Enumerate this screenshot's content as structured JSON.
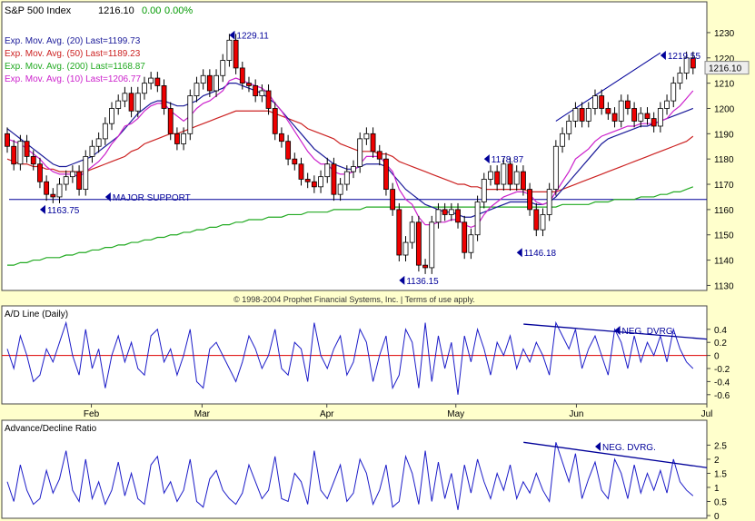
{
  "header": {
    "symbol": "S&P 500 Index",
    "last": "1216.10",
    "change": "0.00",
    "change_pct": "0.00%"
  },
  "copyright": "© 1998-2004 Prophet Financial Systems, Inc. | Terms of use apply.",
  "colors": {
    "background": "#ffffcc",
    "panel": "#ffffff",
    "up_candle": "#ffffff",
    "down_candle": "#ee0000",
    "ema20": "#1a1a99",
    "ema50": "#cc2222",
    "ema200": "#22aa22",
    "ema10": "#cc22cc",
    "indicator_line": "#1c1cc8",
    "zero_line": "#dd0000",
    "annotation": "#000099"
  },
  "chart_data": [
    {
      "type": "candlestick",
      "title": "S&P 500 Index",
      "ylim": [
        1128,
        1235
      ],
      "yticks": [
        1130,
        1140,
        1150,
        1160,
        1170,
        1180,
        1190,
        1200,
        1210,
        1220,
        1230
      ],
      "last_value_label": "1216.10",
      "legend": [
        {
          "label": "Exp. Mov. Avg. (20) Last=1199.73",
          "series": "ema20"
        },
        {
          "label": "Exp. Mov. Avg. (50) Last=1189.23",
          "series": "ema50"
        },
        {
          "label": "Exp. Mov. Avg. (200) Last=1168.87",
          "series": "ema200"
        },
        {
          "label": "Exp. Mov. Avg. (10) Last=1206.77",
          "series": "ema10"
        }
      ],
      "candles_close": [
        1185,
        1178,
        1187,
        1181,
        1178,
        1171,
        1166,
        1165,
        1170,
        1173,
        1175,
        1168,
        1181,
        1185,
        1188,
        1194,
        1200,
        1203,
        1206,
        1199,
        1206,
        1210,
        1212,
        1209,
        1200,
        1190,
        1186,
        1190,
        1205,
        1210,
        1213,
        1207,
        1213,
        1219,
        1227,
        1216,
        1210,
        1209,
        1205,
        1207,
        1200,
        1190,
        1187,
        1180,
        1178,
        1172,
        1171,
        1169,
        1173,
        1178,
        1166,
        1170,
        1175,
        1177,
        1188,
        1190,
        1183,
        1180,
        1168,
        1160,
        1142,
        1147,
        1155,
        1138,
        1137,
        1155,
        1160,
        1158,
        1160,
        1155,
        1143,
        1150,
        1163,
        1172,
        1175,
        1170,
        1178,
        1170,
        1175,
        1168,
        1160,
        1152,
        1158,
        1168,
        1185,
        1190,
        1195,
        1200,
        1195,
        1200,
        1205,
        1200,
        1198,
        1195,
        1203,
        1200,
        1195,
        1198,
        1196,
        1193,
        1200,
        1203,
        1210,
        1214,
        1220,
        1216
      ],
      "candles_open": [
        1190,
        1185,
        1178,
        1187,
        1181,
        1178,
        1171,
        1166,
        1165,
        1170,
        1173,
        1175,
        1168,
        1181,
        1185,
        1188,
        1194,
        1200,
        1203,
        1206,
        1199,
        1206,
        1210,
        1212,
        1209,
        1200,
        1190,
        1186,
        1190,
        1205,
        1210,
        1213,
        1207,
        1213,
        1219,
        1227,
        1216,
        1210,
        1209,
        1205,
        1207,
        1200,
        1190,
        1187,
        1180,
        1178,
        1172,
        1171,
        1169,
        1173,
        1178,
        1166,
        1170,
        1175,
        1177,
        1188,
        1190,
        1183,
        1180,
        1168,
        1160,
        1142,
        1147,
        1155,
        1138,
        1137,
        1155,
        1160,
        1158,
        1160,
        1155,
        1143,
        1150,
        1163,
        1172,
        1175,
        1170,
        1178,
        1170,
        1175,
        1168,
        1160,
        1152,
        1158,
        1168,
        1185,
        1190,
        1195,
        1200,
        1195,
        1200,
        1205,
        1200,
        1198,
        1195,
        1203,
        1200,
        1195,
        1198,
        1196,
        1193,
        1200,
        1203,
        1210,
        1214,
        1220
      ],
      "ema20": [
        1192,
        1190,
        1188,
        1186,
        1184,
        1182,
        1180,
        1178,
        1177,
        1177,
        1178,
        1179,
        1180,
        1181,
        1183,
        1185,
        1187,
        1189,
        1192,
        1195,
        1198,
        1200,
        1202,
        1203,
        1203,
        1202,
        1201,
        1201,
        1202,
        1203,
        1205,
        1206,
        1207,
        1208,
        1210,
        1210,
        1209,
        1208,
        1207,
        1206,
        1204,
        1202,
        1199,
        1196,
        1193,
        1190,
        1187,
        1184,
        1182,
        1180,
        1178,
        1177,
        1176,
        1176,
        1177,
        1178,
        1178,
        1178,
        1177,
        1174,
        1171,
        1168,
        1166,
        1164,
        1162,
        1161,
        1160,
        1159,
        1159,
        1158,
        1157,
        1157,
        1158,
        1159,
        1160,
        1161,
        1162,
        1163,
        1163,
        1163,
        1163,
        1162,
        1162,
        1163,
        1165,
        1168,
        1171,
        1174,
        1177,
        1180,
        1183,
        1186,
        1188,
        1189,
        1190,
        1191,
        1192,
        1193,
        1193,
        1194,
        1195,
        1196,
        1197,
        1198,
        1199,
        1200
      ],
      "ema50": [
        1180,
        1179,
        1178,
        1178,
        1177,
        1177,
        1176,
        1176,
        1175,
        1175,
        1175,
        1175,
        1175,
        1176,
        1177,
        1178,
        1179,
        1180,
        1181,
        1183,
        1184,
        1186,
        1187,
        1188,
        1189,
        1190,
        1190,
        1191,
        1192,
        1193,
        1194,
        1195,
        1196,
        1197,
        1198,
        1199,
        1199,
        1199,
        1199,
        1199,
        1199,
        1198,
        1197,
        1196,
        1195,
        1194,
        1192,
        1191,
        1190,
        1189,
        1188,
        1186,
        1185,
        1184,
        1183,
        1183,
        1183,
        1182,
        1182,
        1181,
        1179,
        1178,
        1177,
        1176,
        1175,
        1174,
        1173,
        1172,
        1171,
        1170,
        1170,
        1169,
        1169,
        1168,
        1168,
        1168,
        1168,
        1168,
        1168,
        1168,
        1167,
        1167,
        1167,
        1167,
        1167,
        1168,
        1169,
        1170,
        1171,
        1172,
        1173,
        1174,
        1175,
        1176,
        1177,
        1178,
        1179,
        1180,
        1181,
        1182,
        1183,
        1184,
        1185,
        1186,
        1187,
        1189
      ],
      "ema200": [
        1138,
        1138,
        1139,
        1139,
        1140,
        1140,
        1141,
        1141,
        1141,
        1142,
        1142,
        1143,
        1143,
        1144,
        1144,
        1145,
        1145,
        1146,
        1146,
        1147,
        1147,
        1148,
        1148,
        1149,
        1149,
        1150,
        1150,
        1151,
        1151,
        1152,
        1152,
        1153,
        1153,
        1154,
        1154,
        1155,
        1155,
        1156,
        1156,
        1156,
        1157,
        1157,
        1157,
        1158,
        1158,
        1158,
        1159,
        1159,
        1159,
        1159,
        1160,
        1160,
        1160,
        1160,
        1160,
        1161,
        1161,
        1161,
        1161,
        1161,
        1161,
        1161,
        1161,
        1161,
        1161,
        1161,
        1161,
        1161,
        1161,
        1161,
        1161,
        1161,
        1161,
        1161,
        1161,
        1161,
        1161,
        1161,
        1161,
        1161,
        1161,
        1161,
        1161,
        1161,
        1161,
        1162,
        1162,
        1162,
        1162,
        1162,
        1163,
        1163,
        1163,
        1164,
        1164,
        1164,
        1164,
        1165,
        1165,
        1165,
        1166,
        1166,
        1167,
        1167,
        1168,
        1169
      ],
      "ema10": [
        1188,
        1187,
        1186,
        1184,
        1182,
        1180,
        1177,
        1175,
        1174,
        1174,
        1174,
        1173,
        1175,
        1177,
        1179,
        1182,
        1186,
        1189,
        1193,
        1194,
        1196,
        1199,
        1201,
        1202,
        1202,
        1199,
        1197,
        1195,
        1197,
        1200,
        1202,
        1203,
        1205,
        1207,
        1211,
        1212,
        1211,
        1210,
        1209,
        1208,
        1206,
        1202,
        1199,
        1195,
        1191,
        1187,
        1183,
        1180,
        1178,
        1178,
        1175,
        1174,
        1174,
        1175,
        1178,
        1181,
        1181,
        1181,
        1178,
        1175,
        1168,
        1164,
        1162,
        1157,
        1154,
        1154,
        1155,
        1155,
        1156,
        1156,
        1154,
        1153,
        1154,
        1158,
        1161,
        1163,
        1165,
        1166,
        1167,
        1167,
        1166,
        1163,
        1162,
        1163,
        1167,
        1171,
        1175,
        1180,
        1182,
        1184,
        1187,
        1189,
        1190,
        1191,
        1192,
        1193,
        1193,
        1194,
        1194,
        1194,
        1195,
        1196,
        1199,
        1201,
        1204,
        1207
      ],
      "annotations": [
        {
          "label": "1229.11",
          "x": 34,
          "y": 1229
        },
        {
          "label": "1163.75",
          "x": 5,
          "y": 1160
        },
        {
          "label": "MAJOR SUPPORT",
          "x": 15,
          "y": 1165
        },
        {
          "label": "1136.15",
          "x": 60,
          "y": 1132
        },
        {
          "label": "1178.87",
          "x": 73,
          "y": 1180
        },
        {
          "label": "1146.18",
          "x": 78,
          "y": 1143
        },
        {
          "label": "1219.55",
          "x": 100,
          "y": 1221
        }
      ],
      "support_level": 1164
    },
    {
      "type": "line",
      "title": "A/D Line (Daily)",
      "ylim": [
        -0.7,
        0.55
      ],
      "yticks": [
        "0.4",
        "0.2",
        "0",
        "-0.2",
        "-0.4",
        "-0.6"
      ],
      "annotation": "NEG. DVRG.",
      "values": [
        0.1,
        -0.2,
        0.3,
        0.0,
        -0.4,
        -0.3,
        0.1,
        -0.1,
        0.2,
        0.5,
        0.0,
        -0.3,
        0.4,
        -0.2,
        0.1,
        -0.5,
        0.0,
        0.3,
        -0.1,
        0.2,
        -0.2,
        -0.3,
        0.3,
        0.4,
        -0.1,
        0.1,
        -0.3,
        0.0,
        0.4,
        -0.4,
        -0.5,
        0.1,
        0.2,
        0.0,
        -0.2,
        -0.4,
        -0.1,
        0.3,
        0.1,
        -0.2,
        0.0,
        0.4,
        -0.2,
        -0.3,
        0.2,
        0.1,
        -0.4,
        0.5,
        0.0,
        -0.2,
        0.1,
        0.3,
        -0.3,
        -0.1,
        0.4,
        0.2,
        -0.4,
        0.0,
        0.3,
        -0.5,
        -0.3,
        0.4,
        0.2,
        -0.5,
        0.5,
        -0.4,
        0.3,
        -0.2,
        0.2,
        -0.6,
        0.3,
        -0.1,
        0.4,
        0.1,
        -0.3,
        0.2,
        0.0,
        0.3,
        -0.2,
        0.1,
        -0.1,
        0.2,
        0.0,
        -0.3,
        0.5,
        0.3,
        0.1,
        0.4,
        -0.2,
        0.1,
        0.3,
        0.0,
        -0.3,
        0.4,
        0.2,
        -0.2,
        0.3,
        -0.1,
        0.2,
        0.0,
        0.3,
        -0.1,
        0.4,
        0.1,
        -0.1,
        -0.2
      ],
      "trendline": {
        "x": [
          0.74,
          1.0
        ],
        "y": [
          0.48,
          0.25
        ]
      }
    },
    {
      "type": "line",
      "title": "Advance/Decline Ratio",
      "ylim": [
        0,
        2.9
      ],
      "yticks": [
        "2.5",
        "2",
        "1.5",
        "1",
        "0.5",
        "0"
      ],
      "annotation": "NEG. DVRG.",
      "values": [
        1.2,
        0.5,
        1.8,
        0.9,
        0.4,
        0.6,
        1.6,
        0.8,
        1.3,
        2.3,
        0.9,
        0.5,
        2.0,
        0.6,
        1.2,
        0.4,
        0.9,
        1.9,
        0.7,
        1.5,
        0.6,
        0.4,
        1.8,
        2.1,
        0.8,
        1.2,
        0.5,
        0.9,
        2.0,
        0.5,
        0.3,
        1.3,
        1.6,
        0.9,
        0.6,
        0.4,
        0.8,
        1.8,
        1.2,
        0.6,
        0.9,
        2.1,
        0.6,
        0.5,
        1.5,
        1.2,
        0.4,
        2.3,
        0.9,
        0.6,
        1.2,
        1.8,
        0.5,
        0.8,
        2.0,
        1.5,
        0.4,
        0.9,
        1.8,
        0.3,
        0.5,
        2.1,
        1.5,
        0.4,
        2.3,
        0.5,
        1.9,
        0.6,
        1.5,
        0.2,
        1.8,
        0.8,
        2.0,
        1.2,
        0.6,
        1.5,
        0.9,
        1.8,
        0.6,
        1.2,
        0.8,
        1.5,
        0.9,
        0.5,
        2.6,
        1.9,
        1.2,
        2.2,
        0.6,
        1.3,
        1.9,
        0.9,
        0.6,
        2.0,
        1.5,
        0.6,
        1.8,
        0.8,
        1.5,
        0.9,
        1.6,
        0.8,
        2.0,
        1.2,
        0.9,
        0.7
      ],
      "trendline": {
        "x": [
          0.74,
          1.0
        ],
        "y": [
          2.6,
          1.7
        ]
      }
    }
  ],
  "x_axis": {
    "labels": [
      "Feb",
      "Mar",
      "Apr",
      "May",
      "Jun",
      "Jul"
    ],
    "positions": [
      0.127,
      0.284,
      0.461,
      0.644,
      0.815,
      1.0
    ]
  }
}
